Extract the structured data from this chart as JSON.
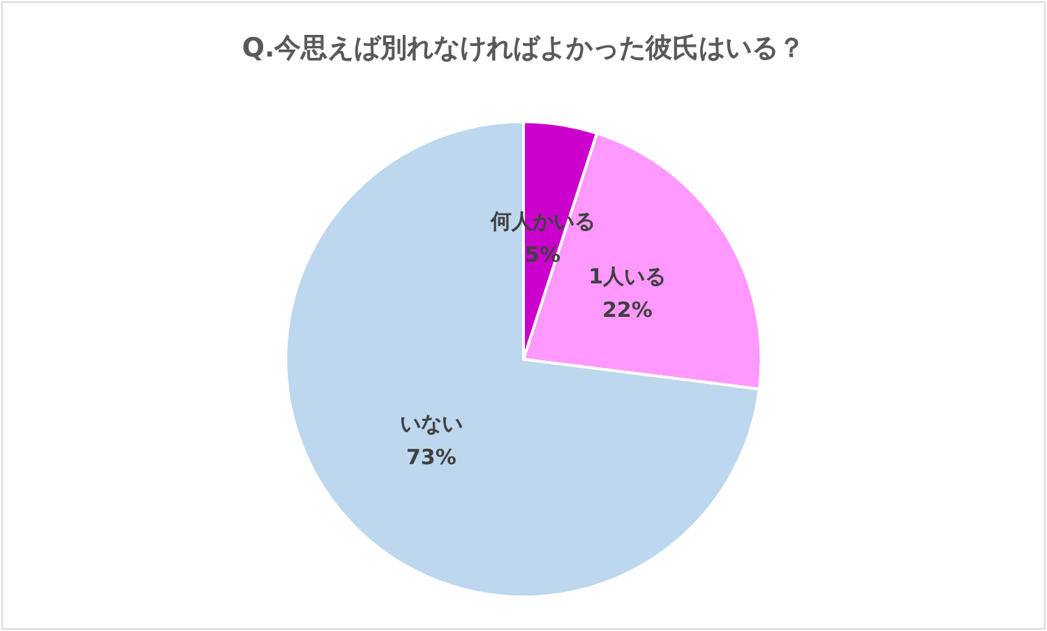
{
  "chart_data": {
    "type": "pie",
    "title": "Q.今思えば別れなければよかった彼氏はいる？",
    "categories": [
      "何人かいる",
      "1人いる",
      "いない"
    ],
    "values": [
      5,
      22,
      73
    ],
    "value_labels": [
      "5%",
      "22%",
      "73%"
    ],
    "colors": [
      "#cc00cc",
      "#ff99ff",
      "#bdd7ee"
    ],
    "legend": false
  }
}
